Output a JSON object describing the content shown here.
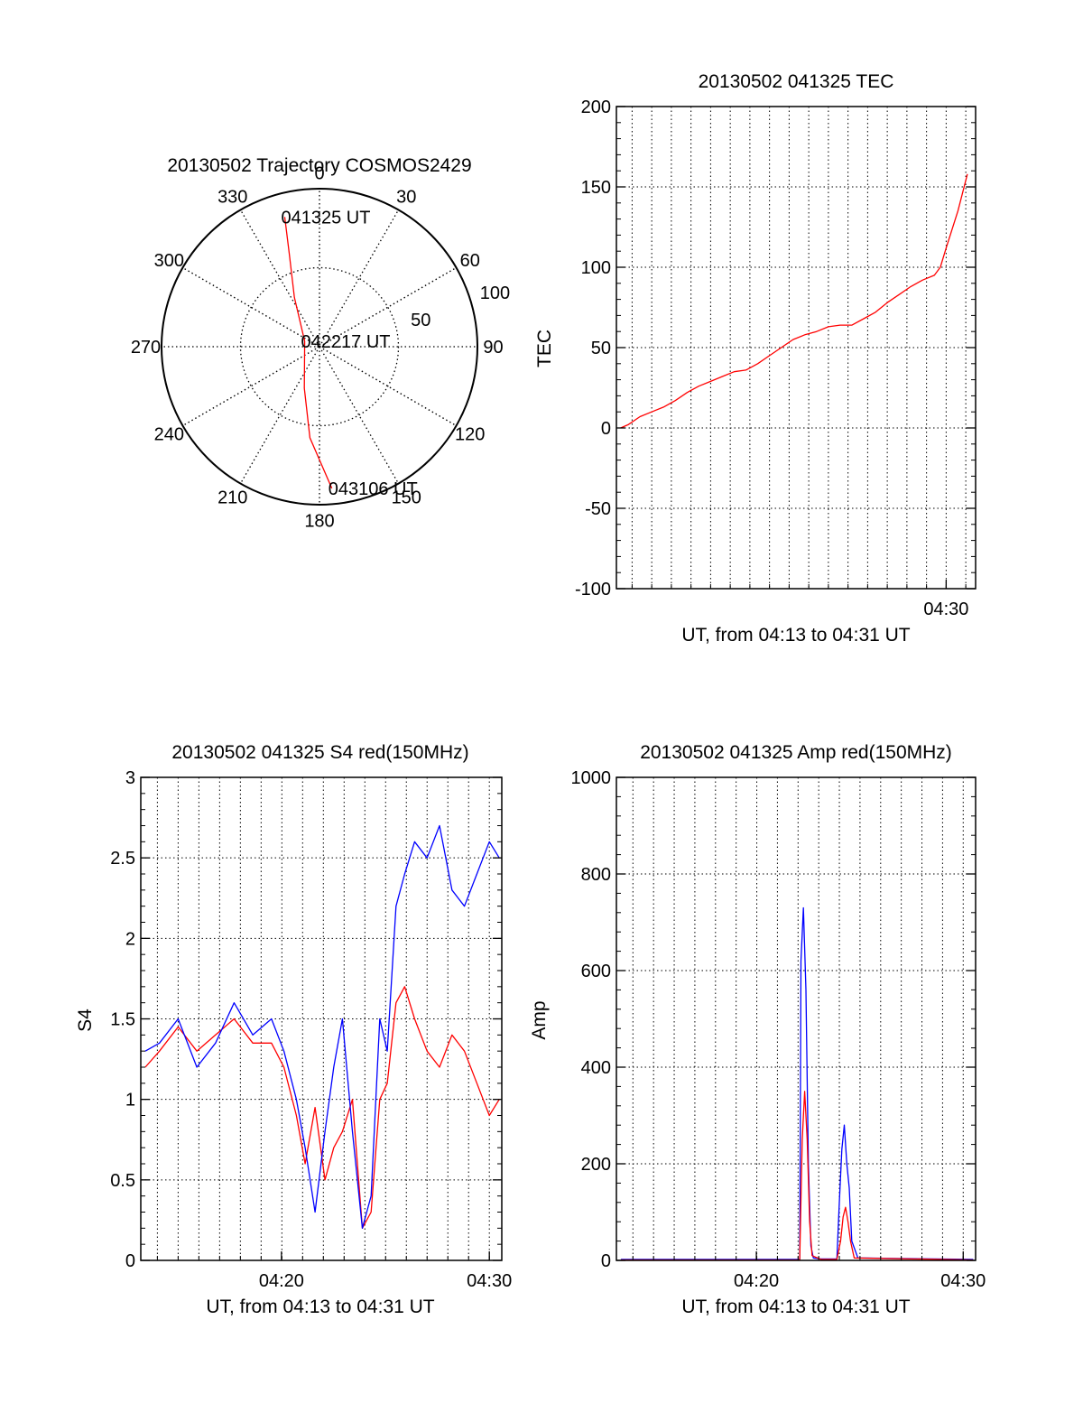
{
  "colors": {
    "red": "#ff0000",
    "blue": "#0000ff",
    "axis": "#000000",
    "grid": "#000000"
  },
  "chart_data": [
    {
      "type": "polar",
      "title": "20130502 Trajectory COSMOS2429",
      "satellite": "COSMOS2429",
      "angle_ticks": [
        "0",
        "30",
        "60",
        "90",
        "120",
        "150",
        "180",
        "210",
        "240",
        "270",
        "300",
        "330"
      ],
      "angle_values": [
        0,
        30,
        60,
        90,
        120,
        150,
        180,
        210,
        240,
        270,
        300,
        330
      ],
      "radial_ticks": [
        "50",
        "100"
      ],
      "radial_values": [
        50,
        100
      ],
      "rlim": [
        0,
        100
      ],
      "grid": true,
      "trajectory": {
        "color": "red",
        "points": [
          {
            "az": 345.0,
            "r": 85.0
          },
          {
            "az": 342.0,
            "r": 62.0
          },
          {
            "az": 333.0,
            "r": 35.0
          },
          {
            "az": 290.0,
            "r": 10.0
          },
          {
            "az": 200.0,
            "r": 28.0
          },
          {
            "az": 186.0,
            "r": 58.0
          },
          {
            "az": 175.0,
            "r": 90.0
          }
        ]
      },
      "annotations": [
        {
          "text": "041325 UT",
          "az": 345.0,
          "r": 85.0
        },
        {
          "text": "042217 UT",
          "az": 290.0,
          "r": 10.0
        },
        {
          "text": "043106 UT",
          "az": 175.0,
          "r": 90.0
        }
      ]
    },
    {
      "type": "line",
      "title": "20130502 041325 TEC",
      "xlabel": "UT, from 04:13 to 04:31 UT",
      "ylabel": "TEC",
      "xlim": [
        4.22,
        4.525
      ],
      "ylim": [
        -100,
        200
      ],
      "yticks": [
        -100,
        -50,
        0,
        50,
        100,
        150,
        200
      ],
      "xticks": [
        4.5
      ],
      "xtick_labels": [
        "04:30"
      ],
      "vgrid_every_minutes": 1,
      "grid": true,
      "series": [
        {
          "name": "TEC",
          "color": "red",
          "x": [
            4.2236,
            4.23,
            4.24,
            4.25,
            4.26,
            4.27,
            4.28,
            4.29,
            4.3,
            4.31,
            4.32,
            4.33,
            4.34,
            4.35,
            4.36,
            4.37,
            4.38,
            4.39,
            4.4,
            4.41,
            4.42,
            4.43,
            4.44,
            4.45,
            4.46,
            4.47,
            4.48,
            4.49,
            4.495,
            4.5,
            4.51,
            4.518
          ],
          "values": [
            0,
            2,
            7,
            10,
            13,
            17,
            22,
            26,
            29,
            32,
            35,
            36,
            40,
            45,
            50,
            55,
            58,
            60,
            63,
            64,
            64,
            68,
            72,
            78,
            83,
            88,
            92,
            95,
            100,
            112,
            135,
            158
          ]
        }
      ]
    },
    {
      "type": "line",
      "title": "20130502 041325 S4 red(150MHz)",
      "xlabel": "UT, from 04:13 to 04:31 UT",
      "ylabel": "S4",
      "xlim": [
        4.22,
        4.51
      ],
      "ylim": [
        0,
        3
      ],
      "yticks": [
        0,
        0.5,
        1,
        1.5,
        2,
        2.5,
        3
      ],
      "ytick_labels": [
        "0",
        "0.5",
        "1",
        "1.5",
        "2",
        "2.5",
        "3"
      ],
      "xticks": [
        4.333,
        4.5
      ],
      "xtick_labels": [
        "04:20",
        "04:30"
      ],
      "vgrid_every_minutes": 1,
      "grid": true,
      "series": [
        {
          "name": "S4 150MHz",
          "color": "red",
          "x": [
            4.2236,
            4.235,
            4.25,
            4.265,
            4.28,
            4.295,
            4.31,
            4.325,
            4.335,
            4.345,
            4.352,
            4.36,
            4.368,
            4.375,
            4.382,
            4.39,
            4.398,
            4.405,
            4.412,
            4.418,
            4.425,
            4.432,
            4.44,
            4.45,
            4.46,
            4.47,
            4.48,
            4.49,
            4.5,
            4.508
          ],
          "values": [
            1.2,
            1.3,
            1.45,
            1.3,
            1.4,
            1.5,
            1.35,
            1.35,
            1.2,
            0.9,
            0.6,
            0.95,
            0.5,
            0.7,
            0.8,
            1.0,
            0.2,
            0.3,
            1.0,
            1.1,
            1.6,
            1.7,
            1.5,
            1.3,
            1.2,
            1.4,
            1.3,
            1.1,
            0.9,
            1.0
          ]
        },
        {
          "name": "S4 400MHz",
          "color": "blue",
          "x": [
            4.2236,
            4.235,
            4.25,
            4.265,
            4.28,
            4.295,
            4.31,
            4.325,
            4.335,
            4.345,
            4.352,
            4.36,
            4.368,
            4.375,
            4.382,
            4.39,
            4.398,
            4.405,
            4.412,
            4.418,
            4.425,
            4.432,
            4.44,
            4.45,
            4.46,
            4.47,
            4.48,
            4.49,
            4.5,
            4.508
          ],
          "values": [
            1.3,
            1.35,
            1.5,
            1.2,
            1.35,
            1.6,
            1.4,
            1.5,
            1.3,
            1.0,
            0.7,
            0.3,
            0.8,
            1.2,
            1.5,
            0.8,
            0.2,
            0.4,
            1.5,
            1.3,
            2.2,
            2.4,
            2.6,
            2.5,
            2.7,
            2.3,
            2.2,
            2.4,
            2.6,
            2.5
          ]
        }
      ]
    },
    {
      "type": "line",
      "title": "20130502 041325 Amp red(150MHz)",
      "xlabel": "UT, from 04:13 to 04:31 UT",
      "ylabel": "Amp",
      "xlim": [
        4.22,
        4.51
      ],
      "ylim": [
        0,
        1000
      ],
      "yticks": [
        0,
        200,
        400,
        600,
        800,
        1000
      ],
      "xticks": [
        4.333,
        4.5
      ],
      "xtick_labels": [
        "04:20",
        "04:30"
      ],
      "vgrid_every_minutes": 1,
      "grid": true,
      "series": [
        {
          "name": "Amp 400MHz",
          "color": "blue",
          "x": [
            4.2236,
            4.36,
            4.368,
            4.369,
            4.371,
            4.373,
            4.375,
            4.377,
            4.379,
            4.385,
            4.398,
            4.4,
            4.402,
            4.404,
            4.406,
            4.408,
            4.41,
            4.415,
            4.508
          ],
          "values": [
            2,
            2,
            2,
            620,
            730,
            560,
            200,
            30,
            5,
            3,
            3,
            120,
            230,
            280,
            200,
            150,
            40,
            5,
            2
          ]
        },
        {
          "name": "Amp 150MHz",
          "color": "red",
          "x": [
            4.2236,
            4.36,
            4.368,
            4.37,
            4.372,
            4.374,
            4.376,
            4.378,
            4.385,
            4.398,
            4.401,
            4.403,
            4.405,
            4.407,
            4.409,
            4.412,
            4.508
          ],
          "values": [
            1,
            1,
            1,
            250,
            350,
            250,
            80,
            10,
            2,
            2,
            40,
            90,
            110,
            80,
            40,
            5,
            1
          ]
        }
      ]
    }
  ]
}
